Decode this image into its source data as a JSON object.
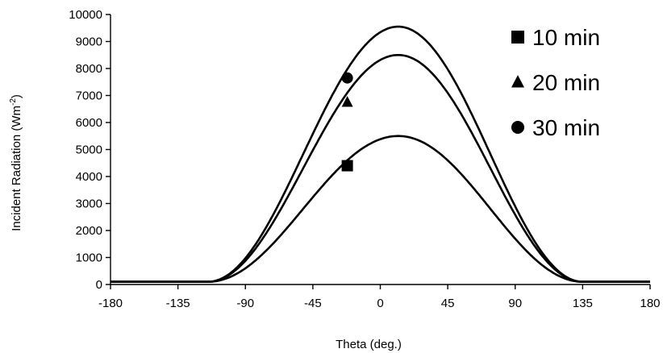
{
  "chart_data": {
    "type": "line",
    "xlabel": "Theta (deg.)",
    "ylabel": "Incident Radiation (Wm",
    "ylabel_sup": "-2",
    "ylabel_close": ")",
    "xlim": [
      -180,
      180
    ],
    "ylim": [
      0,
      10000
    ],
    "x_ticks": [
      -180,
      -135,
      -90,
      -45,
      0,
      45,
      90,
      135,
      180
    ],
    "y_ticks": [
      0,
      1000,
      2000,
      3000,
      4000,
      5000,
      6000,
      7000,
      8000,
      9000,
      10000
    ],
    "grid": false,
    "legend_position": "top-right",
    "colors": {
      "line": "#000000",
      "marker": "#000000",
      "axis": "#000000"
    },
    "series": [
      {
        "name": "10 min",
        "marker": "square",
        "peak": 5500,
        "peak_theta": 12,
        "marker_point": {
          "x": -22,
          "y": 4400
        }
      },
      {
        "name": "20 min",
        "marker": "triangle",
        "peak": 8500,
        "peak_theta": 12,
        "marker_point": {
          "x": -22,
          "y": 6750
        }
      },
      {
        "name": "30 min",
        "marker": "circle",
        "peak": 9550,
        "peak_theta": 12,
        "marker_point": {
          "x": -22,
          "y": 7650
        }
      }
    ],
    "baseline_value": 100,
    "cutoff_low": -115,
    "cutoff_high": 135
  }
}
